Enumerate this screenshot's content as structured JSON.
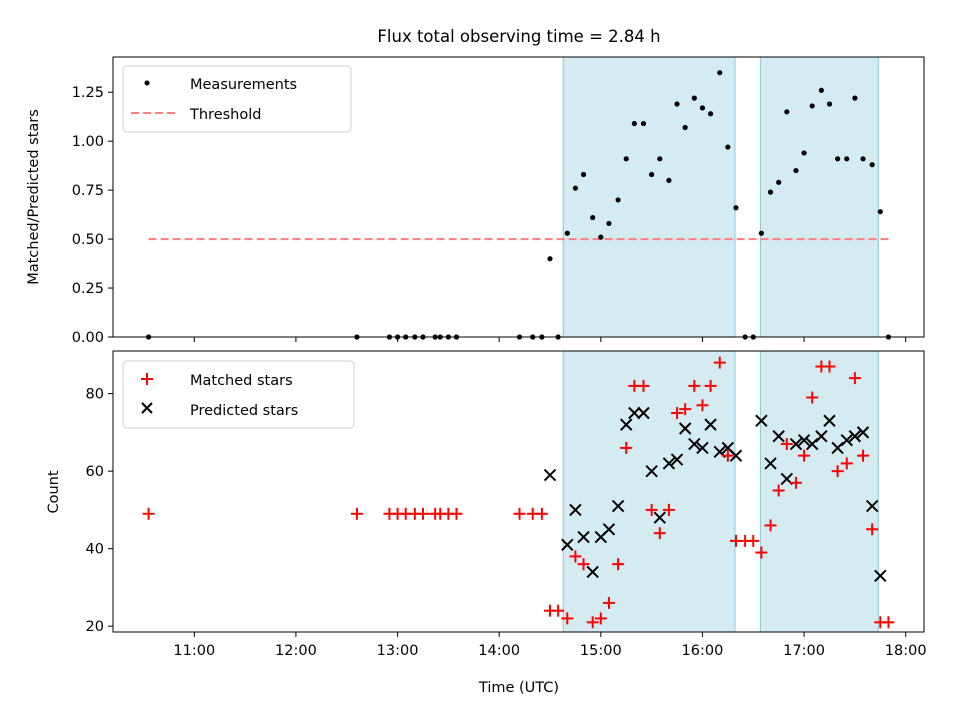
{
  "title": "Flux total observing time = 2.84 h",
  "colors": {
    "span_fill": "#add8e6",
    "measurement": "#000000",
    "threshold": "#ff7f7f",
    "matched": "#ff0000",
    "predicted": "#000000"
  },
  "chart_data": [
    {
      "type": "scatter",
      "panel": "top",
      "xlabel": "",
      "ylabel": "Matched/Predicted stars",
      "xlim_hours": [
        10.2,
        18.18
      ],
      "ylim": [
        0,
        1.43
      ],
      "yticks": [
        0.0,
        0.25,
        0.5,
        0.75,
        1.0,
        1.25
      ],
      "ytick_labels": [
        "0.00",
        "0.25",
        "0.50",
        "0.75",
        "1.00",
        "1.25"
      ],
      "legend_position": "upper-left",
      "legend": [
        "Measurements",
        "Threshold"
      ],
      "observing_spans_hours": [
        [
          14.63,
          16.32
        ],
        [
          16.57,
          17.73
        ]
      ],
      "threshold": {
        "value": 0.5,
        "x_range_hours": [
          10.55,
          17.83
        ]
      },
      "series": [
        {
          "name": "Measurements",
          "x_hours": [
            10.55,
            12.6,
            12.92,
            13.0,
            13.08,
            13.17,
            13.25,
            13.37,
            13.42,
            13.5,
            13.58,
            14.2,
            14.33,
            14.42,
            14.5,
            14.58,
            14.67,
            14.75,
            14.83,
            14.92,
            15.0,
            15.08,
            15.17,
            15.25,
            15.33,
            15.42,
            15.5,
            15.58,
            15.67,
            15.75,
            15.83,
            15.92,
            16.0,
            16.08,
            16.17,
            16.25,
            16.33,
            16.42,
            16.5,
            16.58,
            16.67,
            16.75,
            16.83,
            16.92,
            17.0,
            17.08,
            17.17,
            17.25,
            17.33,
            17.42,
            17.5,
            17.58,
            17.67,
            17.75,
            17.83
          ],
          "values": [
            0,
            0,
            0,
            0,
            0,
            0,
            0,
            0,
            0,
            0,
            0,
            0,
            0,
            0,
            0.4,
            0,
            0.53,
            0.76,
            0.83,
            0.61,
            0.51,
            0.58,
            0.7,
            0.91,
            1.09,
            1.09,
            0.83,
            0.91,
            0.8,
            1.19,
            1.07,
            1.22,
            1.17,
            1.14,
            1.35,
            0.97,
            0.66,
            0,
            0,
            0.53,
            0.74,
            0.79,
            1.15,
            0.85,
            0.94,
            1.18,
            1.26,
            1.19,
            0.91,
            0.91,
            1.22,
            0.91,
            0.88,
            0.64,
            0
          ]
        }
      ]
    },
    {
      "type": "scatter",
      "panel": "bottom",
      "xlabel": "Time (UTC)",
      "ylabel": "Count",
      "xlim_hours": [
        10.2,
        18.18
      ],
      "ylim": [
        18.5,
        91
      ],
      "yticks": [
        20,
        40,
        60,
        80
      ],
      "ytick_labels": [
        "20",
        "40",
        "60",
        "80"
      ],
      "xticks_hours": [
        11,
        12,
        13,
        14,
        15,
        16,
        17,
        18
      ],
      "xtick_labels": [
        "11:00",
        "12:00",
        "13:00",
        "14:00",
        "15:00",
        "16:00",
        "17:00",
        "18:00"
      ],
      "legend_position": "upper-left",
      "legend": [
        "Matched stars",
        "Predicted stars"
      ],
      "observing_spans_hours": [
        [
          14.63,
          16.32
        ],
        [
          16.57,
          17.73
        ]
      ],
      "series": [
        {
          "name": "Matched stars",
          "x_hours": [
            10.55,
            12.6,
            12.92,
            13.0,
            13.08,
            13.17,
            13.25,
            13.37,
            13.42,
            13.5,
            13.58,
            14.2,
            14.33,
            14.42,
            14.5,
            14.58,
            14.67,
            14.75,
            14.83,
            14.92,
            15.0,
            15.08,
            15.17,
            15.25,
            15.33,
            15.42,
            15.5,
            15.58,
            15.67,
            15.75,
            15.83,
            15.92,
            16.0,
            16.08,
            16.17,
            16.25,
            16.33,
            16.42,
            16.5,
            16.58,
            16.67,
            16.75,
            16.83,
            16.92,
            17.0,
            17.08,
            17.17,
            17.25,
            17.33,
            17.42,
            17.5,
            17.58,
            17.67,
            17.75,
            17.83
          ],
          "values": [
            49,
            49,
            49,
            49,
            49,
            49,
            49,
            49,
            49,
            49,
            49,
            49,
            49,
            49,
            24,
            24,
            22,
            38,
            36,
            21,
            22,
            26,
            36,
            66,
            82,
            82,
            50,
            44,
            50,
            75,
            76,
            82,
            77,
            82,
            88,
            64,
            42,
            42,
            42,
            39,
            46,
            55,
            67,
            57,
            64,
            79,
            87,
            87,
            60,
            62,
            84,
            64,
            45,
            21,
            21
          ]
        },
        {
          "name": "Predicted stars",
          "x_hours": [
            14.5,
            14.67,
            14.75,
            14.83,
            14.92,
            15.0,
            15.08,
            15.17,
            15.25,
            15.33,
            15.42,
            15.5,
            15.58,
            15.67,
            15.75,
            15.83,
            15.92,
            16.0,
            16.08,
            16.17,
            16.25,
            16.33,
            16.58,
            16.67,
            16.75,
            16.83,
            16.92,
            17.0,
            17.08,
            17.17,
            17.25,
            17.33,
            17.42,
            17.5,
            17.58,
            17.67,
            17.75
          ],
          "values": [
            59,
            41,
            50,
            43,
            34,
            43,
            45,
            51,
            72,
            75,
            75,
            60,
            48,
            62,
            63,
            71,
            67,
            66,
            72,
            65,
            66,
            64,
            73,
            62,
            69,
            58,
            67,
            68,
            67,
            69,
            73,
            66,
            68,
            69,
            70,
            51,
            33
          ]
        }
      ]
    }
  ]
}
